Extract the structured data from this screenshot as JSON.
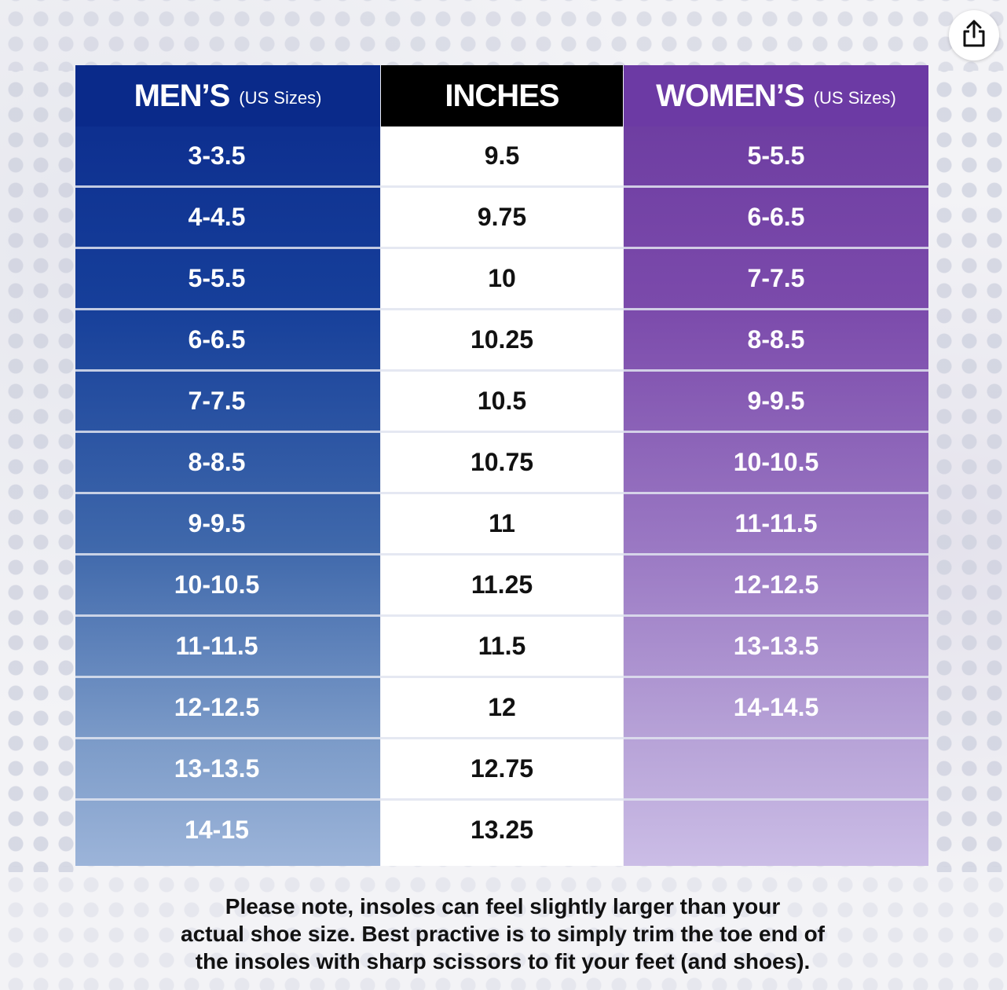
{
  "header": {
    "men_title": "MEN’S",
    "men_subtitle": "(US Sizes)",
    "inches_title": "INCHES",
    "women_title": "WOMEN’S",
    "women_subtitle": "(US Sizes)"
  },
  "rows": [
    {
      "men": "3-3.5",
      "inches": "9.5",
      "women": "5-5.5"
    },
    {
      "men": "4-4.5",
      "inches": "9.75",
      "women": "6-6.5"
    },
    {
      "men": "5-5.5",
      "inches": "10",
      "women": "7-7.5"
    },
    {
      "men": "6-6.5",
      "inches": "10.25",
      "women": "8-8.5"
    },
    {
      "men": "7-7.5",
      "inches": "10.5",
      "women": "9-9.5"
    },
    {
      "men": "8-8.5",
      "inches": "10.75",
      "women": "10-10.5"
    },
    {
      "men": "9-9.5",
      "inches": "11",
      "women": "11-11.5"
    },
    {
      "men": "10-10.5",
      "inches": "11.25",
      "women": "12-12.5"
    },
    {
      "men": "11-11.5",
      "inches": "11.5",
      "women": "13-13.5"
    },
    {
      "men": "12-12.5",
      "inches": "12",
      "women": "14-14.5"
    },
    {
      "men": "13-13.5",
      "inches": "12.75",
      "women": ""
    },
    {
      "men": "14-15",
      "inches": "13.25",
      "women": ""
    }
  ],
  "note": {
    "line1": "Please note, insoles can feel slightly larger than your",
    "line2": "actual shoe size. Best practive is to simply trim the toe end of",
    "line3": "the insoles with sharp scissors to fit your feet (and shoes)."
  },
  "icons": {
    "share": "share-icon"
  },
  "colors": {
    "men_header": "#0a2a8a",
    "inches_header": "#000000",
    "women_header": "#6c3aa4"
  }
}
